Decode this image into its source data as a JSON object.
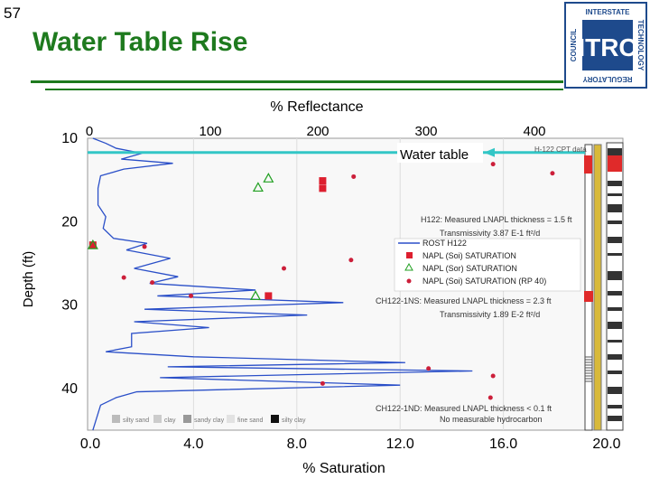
{
  "slide": {
    "number": "57",
    "title": "Water Table Rise"
  },
  "logo": {
    "text": "ITRC",
    "top_text": "INTERSTATE",
    "left_text": "COUNCIL",
    "right_text": "TECHNOLOGY",
    "bottom_text": "REGULATORY"
  },
  "chart_data": {
    "type": "scatter",
    "title": "",
    "xlabel_top": "% Reflectance",
    "xlabel_bottom": "% Saturation",
    "ylabel": "Depth (ft)",
    "top_ticks": [
      "0",
      "100",
      "200",
      "300",
      "400"
    ],
    "bottom_ticks": [
      "0.0",
      "4.0",
      "8.0",
      "12.0",
      "16.0",
      "20.0"
    ],
    "y_ticks": [
      "10",
      "20",
      "30",
      "40"
    ],
    "xlim": [
      0,
      20
    ],
    "ylim": [
      10,
      45
    ],
    "water_table": {
      "label": "Water table",
      "depth": 11.7
    },
    "cpt_label": "H-122 CPT data",
    "legend": [
      "ROST H122",
      "NAPL (Soi) SATURATION",
      "NAPL (Sor) SATURATION",
      "NAPL (Soi) SATURATION (RP 40)"
    ],
    "annotations": [
      {
        "line1": "H122:  Measured LNAPL thickness = 1.5 ft",
        "line2": "Transmissivity 3.87 E-1 ft²/d"
      },
      {
        "line1": "CH122-1NS:  Measured LNAPL thickness = 2.3 ft",
        "line2": "Transmissivity 1.89 E-2 ft²/d"
      },
      {
        "line1": "CH122-1ND:  Measured LNAPL thickness < 0.1 ft",
        "line2": "No measurable hydrocarbon"
      }
    ],
    "soil_legend": [
      "silty sand",
      "clay",
      "sandy clay",
      "fine sand",
      "silty clay"
    ],
    "series": [
      {
        "name": "NAPL (Soi) SATURATION",
        "color": "#dd1f2f",
        "marker": "square",
        "points": [
          [
            9.0,
            15.1
          ],
          [
            9.0,
            16.0
          ],
          [
            0.1,
            22.8
          ],
          [
            6.9,
            28.9
          ]
        ]
      },
      {
        "name": "NAPL (Sor) SATURATION",
        "color": "#22a022",
        "marker": "triangle",
        "points": [
          [
            6.9,
            14.8
          ],
          [
            6.5,
            15.9
          ],
          [
            0.1,
            22.8
          ],
          [
            6.4,
            28.9
          ]
        ]
      },
      {
        "name": "NAPL (Soi) SATURATION (RP 40)",
        "color": "#cc1f3a",
        "marker": "dot",
        "points": [
          [
            15.6,
            13.1
          ],
          [
            17.9,
            14.2
          ],
          [
            10.2,
            14.6
          ],
          [
            2.1,
            23.0
          ],
          [
            10.1,
            24.6
          ],
          [
            7.5,
            25.6
          ],
          [
            1.3,
            26.7
          ],
          [
            2.4,
            27.3
          ],
          [
            3.9,
            28.9
          ],
          [
            13.1,
            37.6
          ],
          [
            15.6,
            38.5
          ],
          [
            9.0,
            39.4
          ],
          [
            15.5,
            41.1
          ]
        ]
      }
    ],
    "rost_profile": [
      [
        0.1,
        10
      ],
      [
        0.6,
        10.6
      ],
      [
        1.0,
        11.2
      ],
      [
        2.0,
        11.8
      ],
      [
        1.2,
        12.5
      ],
      [
        3.2,
        13.0
      ],
      [
        1.3,
        13.7
      ],
      [
        0.4,
        14.5
      ],
      [
        0.3,
        16
      ],
      [
        0.3,
        18
      ],
      [
        0.6,
        19.4
      ],
      [
        0.5,
        20.8
      ],
      [
        0.9,
        22.0
      ],
      [
        2.2,
        22.6
      ],
      [
        1.4,
        23.4
      ],
      [
        3.1,
        24.4
      ],
      [
        1.7,
        25.6
      ],
      [
        3.4,
        26.6
      ],
      [
        2.3,
        27.4
      ],
      [
        6.4,
        28.2
      ],
      [
        2.6,
        28.9
      ],
      [
        9.8,
        29.7
      ],
      [
        2.1,
        30.5
      ],
      [
        8.4,
        31.2
      ],
      [
        1.7,
        32.0
      ],
      [
        4.6,
        32.7
      ],
      [
        1.6,
        33.4
      ],
      [
        1.6,
        35.0
      ],
      [
        0.6,
        35.6
      ],
      [
        4.0,
        36.2
      ],
      [
        12.2,
        36.9
      ],
      [
        3.0,
        37.4
      ],
      [
        14.8,
        37.9
      ],
      [
        2.7,
        38.7
      ],
      [
        12.0,
        39.6
      ],
      [
        1.8,
        40.4
      ],
      [
        1.0,
        41.1
      ],
      [
        0.4,
        42.0
      ],
      [
        0.2,
        44.0
      ],
      [
        0.1,
        45
      ]
    ]
  }
}
